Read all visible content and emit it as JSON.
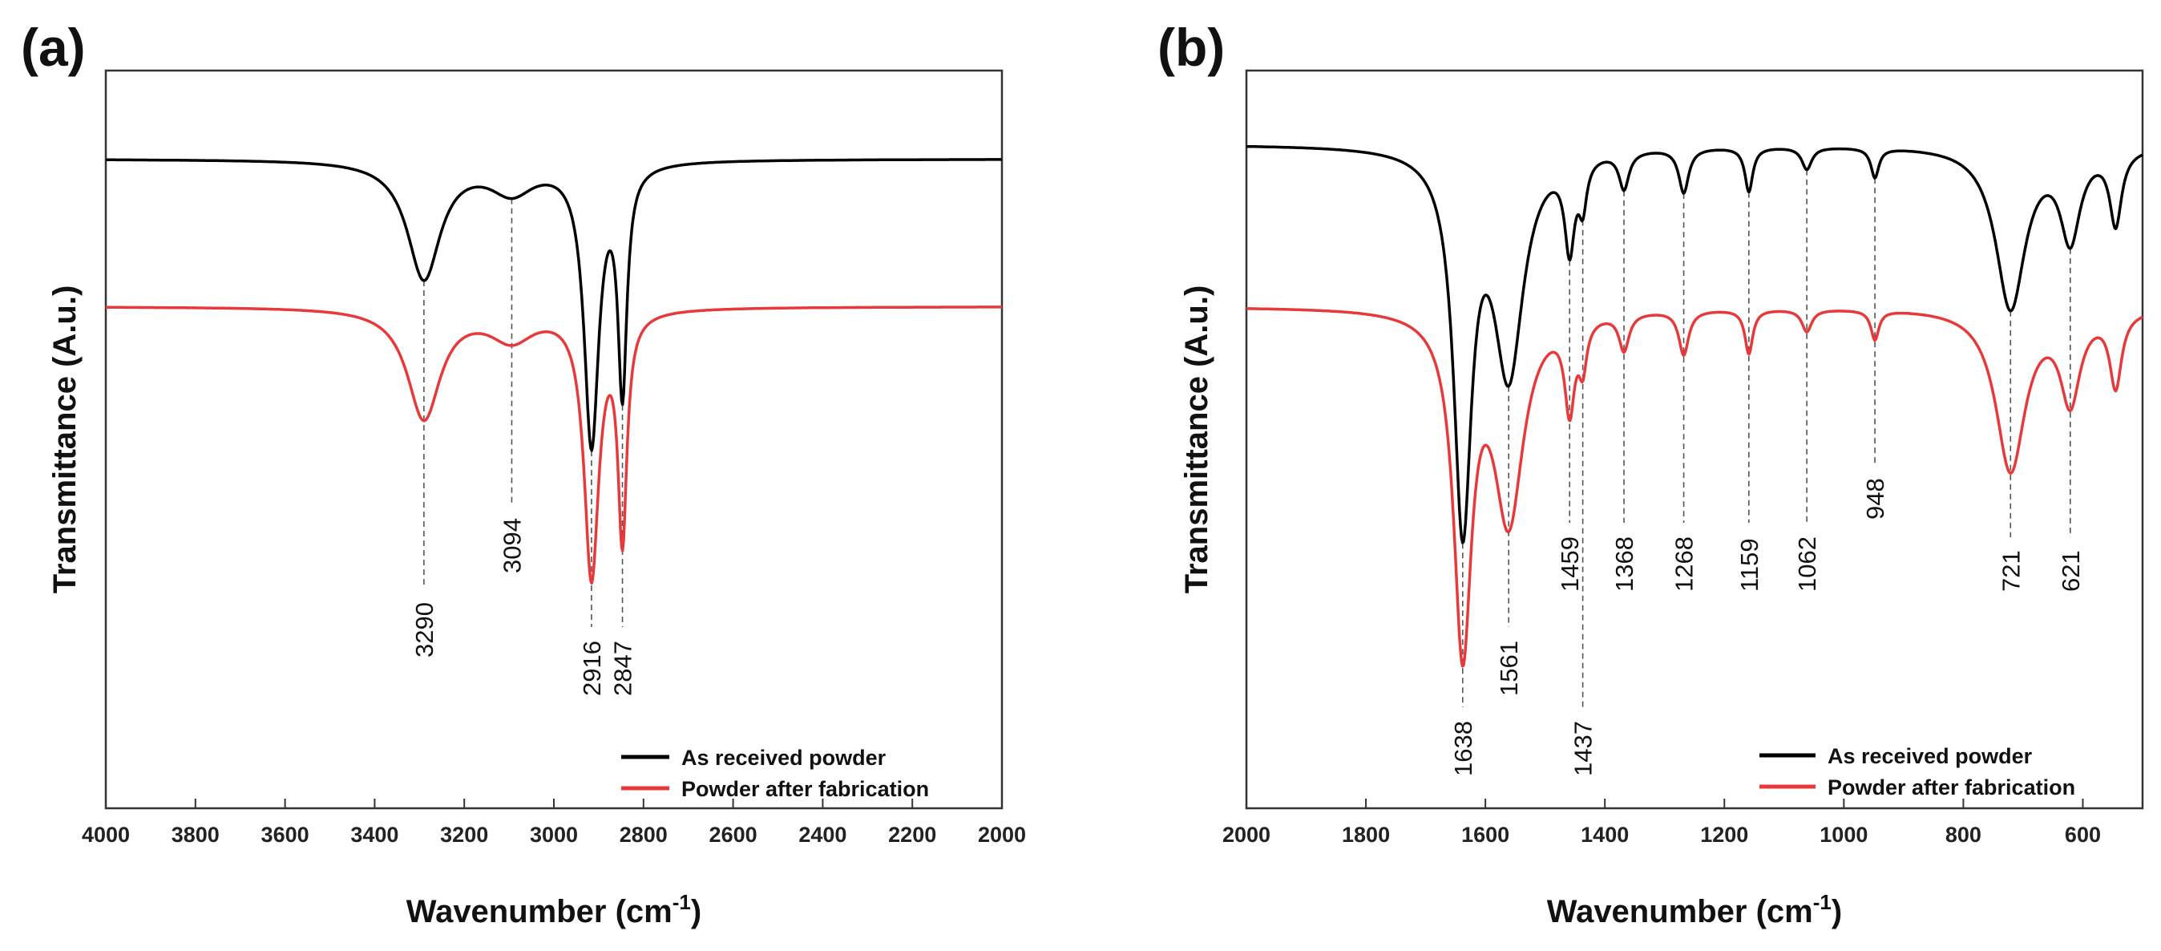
{
  "chart_data": [
    {
      "type": "line",
      "panel_label": "(a)",
      "xlabel": "Wavenumber (cm",
      "xlabel_sup": "-1",
      "xlabel_end": ")",
      "ylabel": "Transmittance (A.u.)",
      "xlim": [
        4000,
        2000
      ],
      "ylim": [
        0,
        100
      ],
      "xticks": [
        4000,
        3800,
        3600,
        3400,
        3200,
        3000,
        2800,
        2600,
        2400,
        2200,
        2000
      ],
      "legend_position": "bottom-right",
      "series": [
        {
          "name": "As received powder",
          "color": "#000000",
          "baseline": 88,
          "peaks": [
            [
              3290,
              16,
              45
            ],
            [
              3094,
              4,
              60
            ],
            [
              2916,
              38,
              20
            ],
            [
              2847,
              30,
              12
            ]
          ]
        },
        {
          "name": "Powder after fabrication",
          "color": "#e8393a",
          "baseline": 68,
          "peaks": [
            [
              3290,
              15,
              45
            ],
            [
              3094,
              4,
              60
            ],
            [
              2916,
              36,
              20
            ],
            [
              2847,
              30,
              12
            ]
          ]
        }
      ],
      "peak_labels": [
        "3290",
        "3094",
        "2916",
        "2847"
      ]
    },
    {
      "type": "line",
      "panel_label": "(b)",
      "xlabel": "Wavenumber (cm",
      "xlabel_sup": "-1",
      "xlabel_end": ")",
      "ylabel": "Transmittance (A.u.)",
      "xlim": [
        2000,
        500
      ],
      "ylim": [
        0,
        100
      ],
      "xticks": [
        2000,
        1800,
        1600,
        1400,
        1200,
        1000,
        800,
        600
      ],
      "legend_position": "bottom-right",
      "series": [
        {
          "name": "As received powder",
          "color": "#000000",
          "baseline": 90,
          "peaks": [
            [
              1638,
              50,
              18
            ],
            [
              1561,
              30,
              30
            ],
            [
              1459,
              12,
              10
            ],
            [
              1437,
              6,
              8
            ],
            [
              1368,
              5,
              10
            ],
            [
              1268,
              6,
              10
            ],
            [
              1159,
              6,
              8
            ],
            [
              1062,
              3,
              10
            ],
            [
              948,
              4,
              8
            ],
            [
              721,
              22,
              30
            ],
            [
              621,
              12,
              20
            ],
            [
              545,
              10,
              12
            ]
          ]
        },
        {
          "name": "Powder after fabrication",
          "color": "#e8393a",
          "baseline": 68,
          "peaks": [
            [
              1638,
              45,
              18
            ],
            [
              1561,
              28,
              30
            ],
            [
              1459,
              12,
              10
            ],
            [
              1437,
              6,
              8
            ],
            [
              1368,
              5,
              10
            ],
            [
              1268,
              6,
              10
            ],
            [
              1159,
              6,
              8
            ],
            [
              1062,
              3,
              10
            ],
            [
              948,
              4,
              8
            ],
            [
              721,
              22,
              30
            ],
            [
              621,
              12,
              20
            ],
            [
              545,
              10,
              12
            ]
          ]
        }
      ],
      "peak_labels": [
        "1638",
        "1561",
        "1459",
        "1437",
        "1368",
        "1268",
        "1159",
        "1062",
        "948",
        "721",
        "621"
      ]
    }
  ]
}
